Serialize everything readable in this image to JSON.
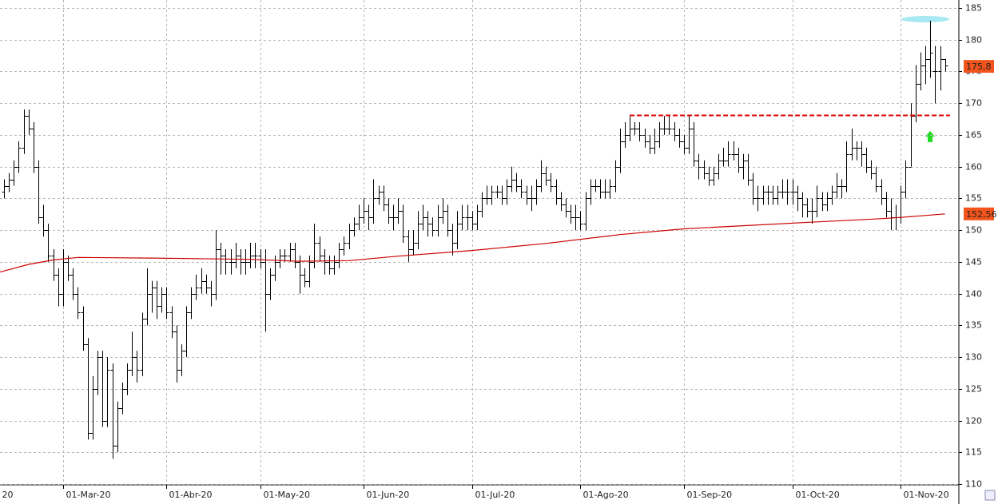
{
  "chart_data": {
    "type": "ohlc",
    "color": "#000000",
    "open": [
      156,
      157,
      158,
      160,
      163,
      168,
      166,
      160,
      152,
      150,
      146,
      143,
      140,
      145,
      143,
      140,
      137,
      132,
      118,
      125,
      130,
      120,
      128,
      116,
      122,
      125,
      128,
      130,
      128,
      136,
      140,
      141,
      138,
      140,
      137,
      134,
      128,
      131,
      137,
      140,
      141,
      142,
      141,
      140,
      147,
      146,
      145,
      145,
      146,
      145,
      145,
      146,
      146,
      145,
      140,
      143,
      145,
      146,
      146,
      147,
      145,
      143,
      142,
      145,
      148,
      146,
      145,
      144,
      145,
      147,
      148,
      150,
      151,
      152,
      153,
      152,
      155,
      156,
      154,
      152,
      152,
      153,
      149,
      147,
      148,
      151,
      152,
      151,
      150,
      152,
      153,
      150,
      148,
      151,
      152,
      152,
      151,
      153,
      155,
      155,
      156,
      156,
      155,
      157,
      158,
      157,
      156,
      155,
      155,
      157,
      159,
      158,
      157,
      155,
      154,
      153,
      152,
      152,
      151,
      155,
      157,
      157,
      156,
      156,
      157,
      160,
      164,
      165,
      166,
      166,
      165,
      164,
      163,
      164,
      166,
      166,
      166,
      165,
      164,
      163,
      166,
      161,
      160,
      159,
      158,
      159,
      161,
      161,
      162,
      162,
      160,
      161,
      158,
      155,
      155,
      156,
      156,
      155,
      156,
      156,
      156,
      156,
      155,
      154,
      153,
      153,
      155,
      154,
      155,
      156,
      157,
      157,
      162,
      163,
      163,
      162,
      160,
      159,
      157,
      155,
      153,
      152,
      152,
      156,
      160,
      168,
      173,
      176,
      177,
      175,
      175,
      177
    ],
    "high": [
      158,
      159,
      161,
      164,
      169,
      169,
      167,
      161,
      154,
      151,
      147,
      144,
      147,
      146,
      144,
      141,
      138,
      133,
      127,
      131,
      131,
      130,
      129,
      123,
      126,
      129,
      134,
      131,
      137,
      144,
      142,
      142,
      141,
      141,
      138,
      135,
      132,
      138,
      141,
      143,
      144,
      143,
      142,
      150,
      148,
      147,
      147,
      148,
      147,
      147,
      148,
      148,
      147,
      147,
      144,
      146,
      147,
      147,
      148,
      148,
      146,
      144,
      146,
      151,
      149,
      147,
      146,
      146,
      148,
      149,
      151,
      152,
      154,
      155,
      154,
      158,
      157,
      157,
      155,
      154,
      155,
      154,
      150,
      150,
      153,
      154,
      153,
      152,
      154,
      155,
      154,
      151,
      153,
      154,
      154,
      153,
      154,
      156,
      157,
      157,
      157,
      157,
      158,
      160,
      159,
      158,
      157,
      157,
      158,
      161,
      160,
      159,
      158,
      156,
      155,
      154,
      154,
      153,
      156,
      158,
      158,
      158,
      158,
      158,
      161,
      166,
      167,
      168,
      167,
      167,
      166,
      165,
      166,
      167,
      168,
      168,
      167,
      166,
      165,
      168,
      167,
      162,
      161,
      160,
      160,
      162,
      163,
      164,
      164,
      163,
      162,
      162,
      159,
      157,
      157,
      157,
      157,
      157,
      158,
      158,
      158,
      157,
      156,
      155,
      155,
      157,
      156,
      156,
      157,
      159,
      158,
      164,
      166,
      164,
      164,
      163,
      161,
      160,
      158,
      156,
      155,
      154,
      157,
      161,
      170,
      176,
      178,
      179,
      183,
      179,
      179,
      177
    ],
    "low": [
      155,
      156,
      157,
      159,
      162,
      165,
      159,
      151,
      149,
      145,
      142,
      138,
      138,
      142,
      139,
      136,
      131,
      117,
      117,
      124,
      119,
      119,
      114,
      115,
      121,
      124,
      127,
      126,
      127,
      135,
      137,
      136,
      137,
      136,
      133,
      126,
      127,
      130,
      136,
      139,
      140,
      140,
      138,
      139,
      143,
      143,
      143,
      144,
      143,
      143,
      144,
      144,
      144,
      134,
      139,
      142,
      144,
      145,
      145,
      144,
      140,
      141,
      141,
      144,
      145,
      143,
      143,
      143,
      144,
      146,
      147,
      149,
      150,
      151,
      150,
      151,
      154,
      153,
      151,
      150,
      151,
      148,
      145,
      146,
      147,
      150,
      149,
      149,
      149,
      151,
      149,
      146,
      147,
      150,
      150,
      150,
      150,
      152,
      154,
      154,
      155,
      154,
      154,
      156,
      156,
      155,
      154,
      153,
      154,
      156,
      157,
      156,
      154,
      153,
      152,
      151,
      150,
      150,
      150,
      154,
      156,
      155,
      155,
      155,
      156,
      159,
      163,
      164,
      165,
      164,
      163,
      162,
      162,
      163,
      165,
      165,
      164,
      163,
      162,
      162,
      160,
      158,
      158,
      157,
      157,
      158,
      160,
      160,
      161,
      159,
      158,
      157,
      154,
      153,
      154,
      154,
      154,
      154,
      155,
      154,
      154,
      153,
      152,
      152,
      151,
      152,
      153,
      153,
      154,
      155,
      155,
      156,
      161,
      161,
      160,
      159,
      158,
      156,
      154,
      152,
      150,
      150,
      151,
      155,
      160,
      167,
      172,
      173,
      174,
      170,
      172,
      175
    ],
    "close": [
      157,
      158,
      160,
      163,
      168,
      166,
      160,
      152,
      150,
      146,
      143,
      140,
      145,
      143,
      140,
      137,
      132,
      118,
      125,
      130,
      120,
      128,
      116,
      122,
      125,
      128,
      130,
      128,
      136,
      140,
      141,
      138,
      140,
      137,
      134,
      128,
      131,
      137,
      140,
      141,
      142,
      141,
      140,
      147,
      146,
      145,
      145,
      146,
      145,
      145,
      146,
      146,
      145,
      140,
      143,
      145,
      146,
      146,
      147,
      145,
      143,
      142,
      145,
      148,
      146,
      145,
      144,
      145,
      147,
      148,
      150,
      151,
      152,
      153,
      152,
      155,
      156,
      154,
      152,
      152,
      153,
      149,
      147,
      148,
      151,
      152,
      151,
      150,
      152,
      153,
      150,
      148,
      151,
      152,
      152,
      151,
      153,
      155,
      155,
      156,
      156,
      155,
      157,
      158,
      157,
      156,
      155,
      155,
      157,
      159,
      158,
      157,
      155,
      154,
      153,
      152,
      152,
      151,
      155,
      157,
      157,
      156,
      156,
      157,
      160,
      164,
      165,
      166,
      166,
      165,
      164,
      163,
      164,
      166,
      166,
      166,
      165,
      164,
      163,
      166,
      161,
      160,
      159,
      158,
      159,
      161,
      161,
      162,
      162,
      160,
      161,
      158,
      155,
      155,
      156,
      156,
      155,
      156,
      156,
      156,
      156,
      155,
      154,
      153,
      153,
      155,
      154,
      155,
      156,
      157,
      157,
      162,
      163,
      163,
      162,
      160,
      159,
      157,
      155,
      153,
      152,
      152,
      156,
      160,
      168,
      173,
      176,
      177,
      178,
      175,
      177,
      176
    ],
    "moving_average": {
      "color": "#cc0000",
      "x": [
        -0.8,
        5,
        10,
        15,
        30,
        50,
        60,
        70,
        80,
        95,
        110,
        125,
        138,
        150,
        165,
        178,
        182,
        191
      ],
      "values": [
        143.4,
        144.6,
        145.3,
        145.7,
        145.6,
        145.4,
        145.1,
        145.2,
        145.9,
        146.8,
        147.9,
        149.3,
        150.2,
        150.7,
        151.3,
        151.8,
        152.0,
        152.56
      ]
    },
    "resistance": {
      "value": 168.2,
      "x": [
        127,
        192
      ],
      "color": "#e00000"
    },
    "last_labels": [
      {
        "value": 175.8,
        "label": "175,8"
      },
      {
        "value": 152.56,
        "label": "152,56"
      }
    ],
    "xlim": [
      -0.8,
      193.8
    ],
    "ylim": [
      110,
      185
    ],
    "yticks": [
      110,
      115,
      120,
      125,
      130,
      135,
      140,
      145,
      150,
      155,
      160,
      165,
      170,
      175,
      180,
      185
    ],
    "xticks": [
      {
        "value": -1,
        "label": "20"
      },
      {
        "value": 12,
        "label": "01-Mar-20"
      },
      {
        "value": 33,
        "label": "01-Abr-20"
      },
      {
        "value": 52,
        "label": "01-May-20"
      },
      {
        "value": 73,
        "label": "01-Jun-20"
      },
      {
        "value": 95,
        "label": "01-Jul-20"
      },
      {
        "value": 117,
        "label": "01-Ago-20"
      },
      {
        "value": 138,
        "label": "01-Sep-20"
      },
      {
        "value": 160,
        "label": "01-Oct-20"
      },
      {
        "value": 182,
        "label": "01-Nov-20"
      }
    ],
    "grid": true
  }
}
